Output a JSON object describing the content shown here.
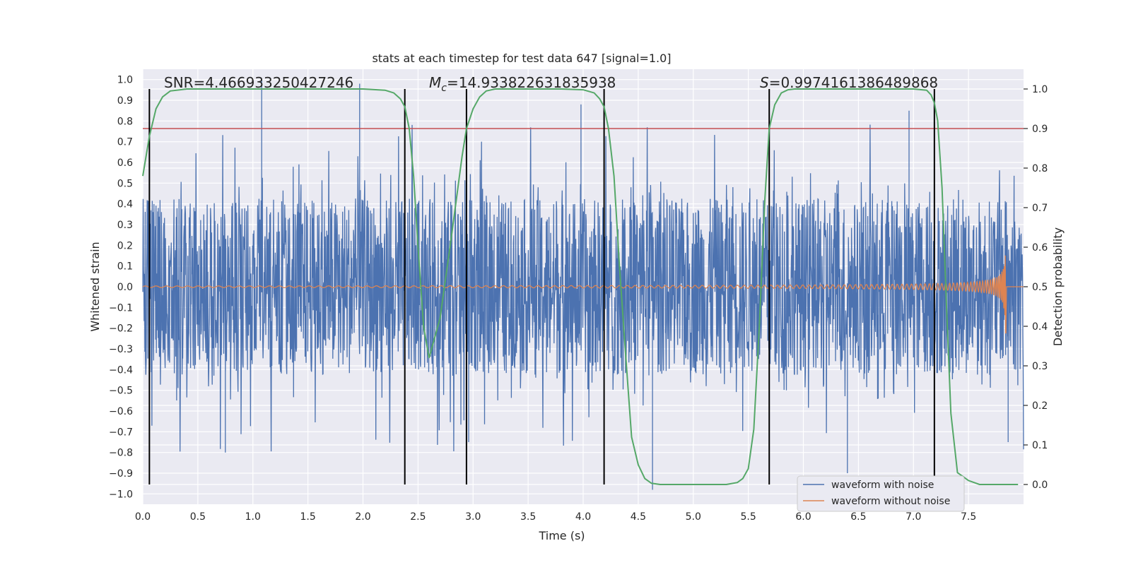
{
  "chart_data": {
    "type": "line",
    "title": "stats at each timestep for test data 647 [signal=1.0]",
    "xlabel": "Time (s)",
    "ylabel_left": "Whitened strain",
    "ylabel_right": "Detection probability",
    "xlim": [
      0.0,
      8.0
    ],
    "ylim_left": [
      -1.05,
      1.05
    ],
    "ylim_right": [
      -0.05,
      1.05
    ],
    "xticks": [
      "0.0",
      "0.5",
      "1.0",
      "1.5",
      "2.0",
      "2.5",
      "3.0",
      "3.5",
      "4.0",
      "4.5",
      "5.0",
      "5.5",
      "6.0",
      "6.5",
      "7.0",
      "7.5"
    ],
    "yticks_left": [
      "1.0",
      "0.9",
      "0.8",
      "0.7",
      "0.6",
      "0.5",
      "0.4",
      "0.3",
      "0.2",
      "0.1",
      "0.0",
      "−0.1",
      "−0.2",
      "−0.3",
      "−0.4",
      "−0.5",
      "−0.6",
      "−0.7",
      "−0.8",
      "−0.9",
      "−1.0"
    ],
    "yticks_right": [
      "1.0",
      "0.9",
      "0.8",
      "0.7",
      "0.6",
      "0.5",
      "0.4",
      "0.3",
      "0.2",
      "0.1",
      "0.0"
    ],
    "grid": true,
    "annotations": {
      "snr": "SNR=4.466933250427246",
      "mc_symbol": "M",
      "mc_sub": "c",
      "mc_value": "=14.933822631835938",
      "s_symbol": "S",
      "s_value": "=0.9974161386489868"
    },
    "threshold": {
      "value": 0.9,
      "axis": "right",
      "color": "#c44e52"
    },
    "vertical_lines": [
      0.06,
      2.38,
      2.94,
      4.19,
      5.69,
      7.19
    ],
    "vertical_lines_range_right": [
      0.0,
      1.0
    ],
    "detection_probability": {
      "name": "Detection probability",
      "color": "#55a868",
      "x": [
        0.0,
        0.06,
        0.12,
        0.18,
        0.25,
        0.4,
        0.8,
        1.5,
        2.0,
        2.2,
        2.28,
        2.34,
        2.38,
        2.42,
        2.46,
        2.5,
        2.55,
        2.6,
        2.7,
        2.8,
        2.9,
        2.94,
        3.0,
        3.06,
        3.12,
        3.2,
        3.4,
        3.8,
        4.0,
        4.1,
        4.15,
        4.19,
        4.23,
        4.28,
        4.33,
        4.38,
        4.44,
        4.5,
        4.56,
        4.62,
        4.7,
        5.0,
        5.3,
        5.4,
        5.45,
        5.5,
        5.55,
        5.6,
        5.65,
        5.69,
        5.74,
        5.8,
        5.86,
        5.92,
        6.0,
        6.5,
        7.0,
        7.12,
        7.16,
        7.19,
        7.22,
        7.26,
        7.3,
        7.34,
        7.4,
        7.5,
        7.6,
        7.7,
        7.8,
        7.95
      ],
      "y": [
        0.78,
        0.88,
        0.95,
        0.98,
        0.995,
        1.0,
        1.0,
        1.0,
        1.0,
        0.997,
        0.99,
        0.975,
        0.955,
        0.9,
        0.78,
        0.6,
        0.4,
        0.32,
        0.42,
        0.62,
        0.83,
        0.9,
        0.95,
        0.98,
        0.995,
        1.0,
        1.0,
        1.0,
        0.998,
        0.99,
        0.975,
        0.955,
        0.9,
        0.78,
        0.55,
        0.35,
        0.12,
        0.05,
        0.015,
        0.003,
        0.0,
        0.0,
        0.0,
        0.005,
        0.015,
        0.04,
        0.14,
        0.4,
        0.72,
        0.9,
        0.96,
        0.99,
        0.998,
        1.0,
        1.0,
        1.0,
        1.0,
        0.997,
        0.985,
        0.965,
        0.92,
        0.75,
        0.45,
        0.18,
        0.03,
        0.01,
        0.0,
        0.0,
        0.0,
        0.0
      ]
    },
    "series": [
      {
        "name": "waveform with noise",
        "color": "#4c72b0",
        "axis": "left",
        "style": "dense noise, amplitude roughly ±0.45 with spikes near ±1.0",
        "x_range": [
          0.0,
          8.0
        ]
      },
      {
        "name": "waveform without noise",
        "color": "#dd8452",
        "axis": "left",
        "style": "chirp growing to about 0.3 at t=7.84 s",
        "x_range": [
          0.0,
          7.84
        ]
      }
    ],
    "legend_position": "lower right"
  }
}
